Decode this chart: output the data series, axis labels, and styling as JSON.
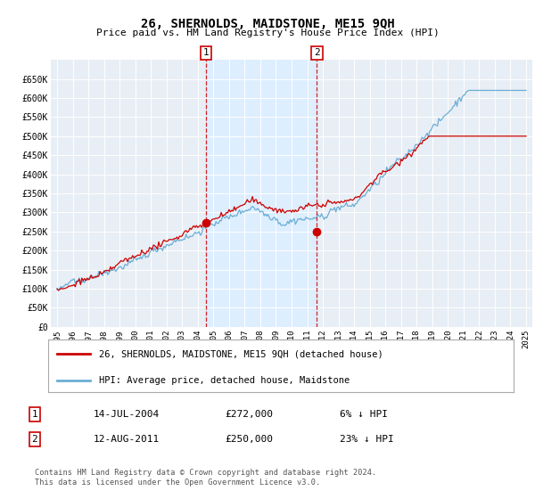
{
  "title": "26, SHERNOLDS, MAIDSTONE, ME15 9QH",
  "subtitle": "Price paid vs. HM Land Registry's House Price Index (HPI)",
  "ylim": [
    0,
    700000
  ],
  "yticks": [
    0,
    50000,
    100000,
    150000,
    200000,
    250000,
    300000,
    350000,
    400000,
    450000,
    500000,
    550000,
    600000,
    650000
  ],
  "ytick_labels": [
    "£0",
    "£50K",
    "£100K",
    "£150K",
    "£200K",
    "£250K",
    "£300K",
    "£350K",
    "£400K",
    "£450K",
    "£500K",
    "£550K",
    "£600K",
    "£650K"
  ],
  "hpi_color": "#6baed6",
  "price_color": "#cc0000",
  "shade_color": "#ddeeff",
  "marker1_date": 2004.54,
  "marker1_price": 272000,
  "marker2_date": 2011.62,
  "marker2_price": 250000,
  "legend_line1": "26, SHERNOLDS, MAIDSTONE, ME15 9QH (detached house)",
  "legend_line2": "HPI: Average price, detached house, Maidstone",
  "table_row1": [
    "1",
    "14-JUL-2004",
    "£272,000",
    "6% ↓ HPI"
  ],
  "table_row2": [
    "2",
    "12-AUG-2011",
    "£250,000",
    "23% ↓ HPI"
  ],
  "footnote": "Contains HM Land Registry data © Crown copyright and database right 2024.\nThis data is licensed under the Open Government Licence v3.0.",
  "background_color": "#ffffff",
  "plot_bg_color": "#e8eef5",
  "grid_color": "#ffffff"
}
